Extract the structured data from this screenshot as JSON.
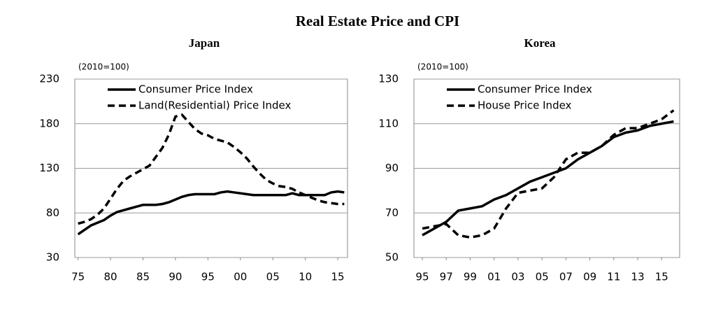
{
  "title": "Real Estate Price and CPI",
  "chart_data": [
    {
      "type": "line",
      "title": "Japan",
      "annotation": "(2010=100)",
      "x": [
        1975,
        1976,
        1977,
        1978,
        1979,
        1980,
        1981,
        1982,
        1983,
        1984,
        1985,
        1986,
        1987,
        1988,
        1989,
        1990,
        1991,
        1992,
        1993,
        1994,
        1995,
        1996,
        1997,
        1998,
        1999,
        2000,
        2001,
        2002,
        2003,
        2004,
        2005,
        2006,
        2007,
        2008,
        2009,
        2010,
        2011,
        2012,
        2013,
        2014,
        2015,
        2016
      ],
      "series": [
        {
          "name": "Consumer Price Index",
          "color": "#000000",
          "dash": false,
          "values": [
            56,
            61,
            66,
            69,
            72,
            77,
            81,
            83,
            85,
            87,
            89,
            89,
            89,
            90,
            92,
            95,
            98,
            100,
            101,
            101,
            101,
            101,
            103,
            104,
            103,
            102,
            101,
            100,
            100,
            100,
            100,
            100,
            100,
            102,
            100,
            100,
            100,
            100,
            100,
            103,
            104,
            103
          ]
        },
        {
          "name": "Land(Residential) Price Index",
          "color": "#000000",
          "dash": true,
          "values": [
            68,
            70,
            73,
            78,
            85,
            96,
            107,
            116,
            121,
            125,
            129,
            133,
            143,
            153,
            168,
            188,
            190,
            182,
            174,
            169,
            167,
            163,
            161,
            159,
            154,
            148,
            141,
            132,
            124,
            117,
            113,
            110,
            109,
            107,
            103,
            100,
            97,
            94,
            92,
            91,
            90,
            90
          ]
        }
      ],
      "xlim": [
        1974.5,
        2016.5
      ],
      "xticks": [
        {
          "value": 1975,
          "label": "75"
        },
        {
          "value": 1980,
          "label": "80"
        },
        {
          "value": 1985,
          "label": "85"
        },
        {
          "value": 1990,
          "label": "90"
        },
        {
          "value": 1995,
          "label": "95"
        },
        {
          "value": 2000,
          "label": "00"
        },
        {
          "value": 2005,
          "label": "05"
        },
        {
          "value": 2010,
          "label": "10"
        },
        {
          "value": 2015,
          "label": "15"
        }
      ],
      "ylim": [
        30,
        230
      ],
      "yticks": [
        30,
        80,
        130,
        180,
        230
      ],
      "grid": true,
      "legend": "upper left"
    },
    {
      "type": "line",
      "title": "Korea",
      "annotation": "(2010=100)",
      "x": [
        1995,
        1996,
        1997,
        1998,
        1999,
        2000,
        2001,
        2002,
        2003,
        2004,
        2005,
        2006,
        2007,
        2008,
        2009,
        2010,
        2011,
        2012,
        2013,
        2014,
        2015,
        2016
      ],
      "series": [
        {
          "name": "Consumer Price Index",
          "color": "#000000",
          "dash": false,
          "values": [
            60,
            63,
            66,
            71,
            72,
            73,
            76,
            78,
            81,
            84,
            86,
            88,
            90,
            94,
            97,
            100,
            104,
            106,
            107,
            109,
            110,
            111
          ]
        },
        {
          "name": "House Price Index",
          "color": "#000000",
          "dash": true,
          "values": [
            63,
            64,
            65,
            60,
            59,
            60,
            63,
            72,
            79,
            80,
            81,
            86,
            94,
            97,
            97,
            100,
            105,
            108,
            108,
            110,
            112,
            116
          ]
        }
      ],
      "xlim": [
        1994.3,
        2016.5
      ],
      "xticks": [
        {
          "value": 1995,
          "label": "95"
        },
        {
          "value": 1997,
          "label": "97"
        },
        {
          "value": 1999,
          "label": "99"
        },
        {
          "value": 2001,
          "label": "01"
        },
        {
          "value": 2003,
          "label": "03"
        },
        {
          "value": 2005,
          "label": "05"
        },
        {
          "value": 2007,
          "label": "07"
        },
        {
          "value": 2009,
          "label": "09"
        },
        {
          "value": 2011,
          "label": "11"
        },
        {
          "value": 2013,
          "label": "13"
        },
        {
          "value": 2015,
          "label": "15"
        }
      ],
      "ylim": [
        50,
        130
      ],
      "yticks": [
        50,
        70,
        90,
        110,
        130
      ],
      "grid": true,
      "legend": "upper left"
    }
  ]
}
